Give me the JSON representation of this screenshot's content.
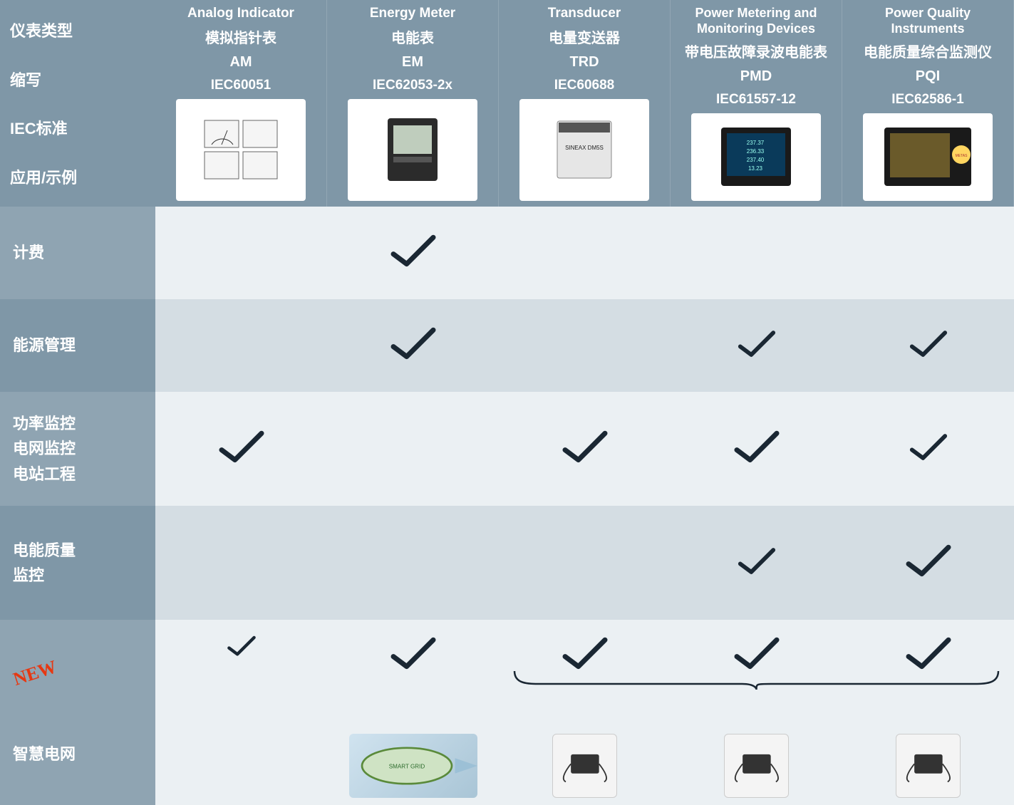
{
  "colors": {
    "header_bg": "#7f97a7",
    "label_even": "#8fa4b2",
    "label_odd": "#7f97a7",
    "stripe_even": "#ebf0f3",
    "stripe_odd": "#d4dde3",
    "text_header": "#ffffff",
    "check_color": "#1a2733",
    "new_color": "#e63812"
  },
  "row_header_labels": {
    "type": "仪表类型",
    "abbr": "缩写",
    "std": "IEC标准",
    "app": "应用/示例"
  },
  "columns": [
    {
      "title_en": "Analog Indicator",
      "title_cn": "模拟指针表",
      "abbr": "AM",
      "std": "IEC60051",
      "img_label": "analog-indicator"
    },
    {
      "title_en": "Energy Meter",
      "title_cn": "电能表",
      "abbr": "EM",
      "std": "IEC62053-2x",
      "img_label": "energy-meter"
    },
    {
      "title_en": "Transducer",
      "title_cn": "电量变送器",
      "abbr": "TRD",
      "std": "IEC60688",
      "img_label": "SINEAX DM5S"
    },
    {
      "title_en": "Power Metering and Monitoring Devices",
      "title_cn": "带电压故障录波电能表",
      "abbr": "PMD",
      "std": "IEC61557-12",
      "img_label": "power-metering-device"
    },
    {
      "title_en": "Power Quality Instruments",
      "title_cn": "电能质量综合监测仪",
      "abbr": "PQI",
      "std": "IEC62586-1",
      "img_label": "power-quality-instrument"
    }
  ],
  "rows": [
    {
      "labels": [
        "计费"
      ],
      "checks": [
        "",
        "lg",
        "",
        "",
        ""
      ],
      "stripe": "even"
    },
    {
      "labels": [
        "能源管理"
      ],
      "checks": [
        "",
        "lg",
        "",
        "md",
        "md"
      ],
      "stripe": "odd"
    },
    {
      "labels": [
        "功率监控",
        "电网监控",
        "电站工程"
      ],
      "checks": [
        "lg",
        "",
        "lg",
        "lg",
        "md"
      ],
      "stripe": "even"
    },
    {
      "labels": [
        "电能质量",
        "监控"
      ],
      "checks": [
        "",
        "",
        "",
        "md",
        "lg"
      ],
      "stripe": "odd"
    }
  ],
  "last_row": {
    "new_badge": "NEW",
    "label": "智慧电网",
    "checks": [
      "sm",
      "lg",
      "lg",
      "lg",
      "lg"
    ],
    "bottom_items": [
      "smart-grid-arrow",
      "smart-grid-oval",
      "device-1",
      "device-2",
      "device-3"
    ],
    "stripe": "even"
  }
}
